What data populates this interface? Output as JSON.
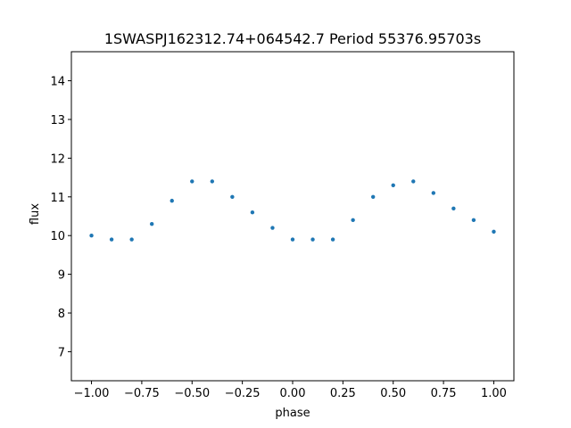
{
  "chart_data": {
    "type": "scatter",
    "title": "1SWASPJ162312.74+064542.7 Period 55376.95703s",
    "xlabel": "phase",
    "ylabel": "flux",
    "xlim": [
      -1.1,
      1.1
    ],
    "ylim": [
      6.25,
      14.75
    ],
    "xticks": [
      -1.0,
      -0.75,
      -0.5,
      -0.25,
      0.0,
      0.25,
      0.5,
      0.75,
      1.0
    ],
    "xtick_labels": [
      "−1.00",
      "−0.75",
      "−0.50",
      "−0.25",
      "0.00",
      "0.25",
      "0.50",
      "0.75",
      "1.00"
    ],
    "yticks": [
      7,
      8,
      9,
      10,
      11,
      12,
      13,
      14
    ],
    "ytick_labels": [
      "7",
      "8",
      "9",
      "10",
      "11",
      "12",
      "13",
      "14"
    ],
    "grid": false,
    "legend": "none",
    "marker_color": "#1f77b4",
    "series": [
      {
        "x": [
          -1.0,
          -0.9,
          -0.8,
          -0.7,
          -0.6,
          -0.5,
          -0.4,
          -0.3,
          -0.2,
          -0.1,
          0.0,
          0.1,
          0.2,
          0.3,
          0.4,
          0.5,
          0.6,
          0.7,
          0.8,
          0.9,
          1.0
        ],
        "y": [
          10.0,
          9.9,
          9.9,
          10.3,
          10.9,
          11.4,
          11.4,
          11.0,
          10.6,
          10.2,
          9.9,
          9.9,
          9.9,
          10.4,
          11.0,
          11.3,
          11.4,
          11.1,
          10.7,
          10.4,
          10.1
        ]
      }
    ]
  }
}
